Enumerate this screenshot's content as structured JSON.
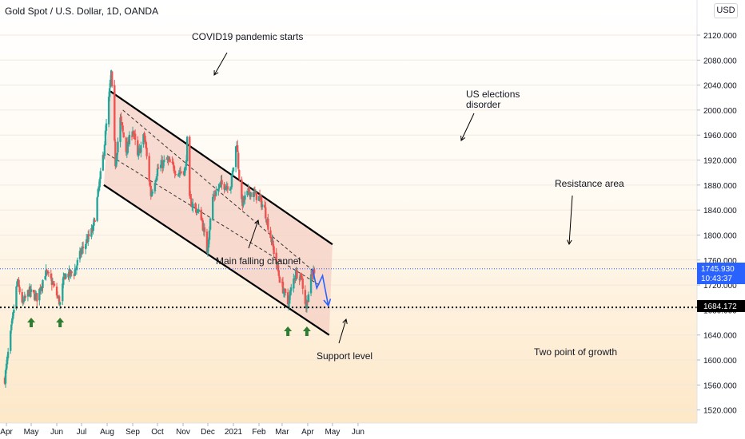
{
  "header": {
    "title": "Gold Spot / U.S. Dollar, 1D, OANDA",
    "currency_button": "USD"
  },
  "annotations": {
    "covid": "COVID19 pandemic starts",
    "elections": "US elections disorder",
    "resistance": "Resistance area",
    "channel": "Main falling channel",
    "support": "Support level",
    "growth": "Two point of growth"
  },
  "price_scale": {
    "labels": [
      "2120.000",
      "2080.000",
      "2040.000",
      "2000.000",
      "1960.000",
      "1920.000",
      "1880.000",
      "1840.000",
      "1800.000",
      "1760.000",
      "1720.000",
      "1680.000",
      "1640.000",
      "1600.000",
      "1560.000",
      "1520.000"
    ],
    "current_price": "1745.930",
    "countdown": "10:43:37",
    "support_price": "1684.172"
  },
  "time_axis": {
    "labels": [
      "Apr",
      "May",
      "Jun",
      "Jul",
      "Aug",
      "Sep",
      "Oct",
      "Nov",
      "Dec",
      "2021",
      "Feb",
      "Mar",
      "Apr",
      "May",
      "Jun"
    ]
  },
  "colors": {
    "up": "#26a69a",
    "down": "#ef5350",
    "arrow_up": "#2e7d32",
    "projection": "#2962ff",
    "channel_fill": "#f4cfc4",
    "price_tag": "#2962ff",
    "support_tag": "#000000"
  },
  "chart_data": {
    "type": "candlestick",
    "title": "Gold Spot / U.S. Dollar, 1D, OANDA",
    "ylim": [
      1500,
      2160
    ],
    "x_ticks": [
      "Apr",
      "May",
      "Jun",
      "Jul",
      "Aug",
      "Sep",
      "Oct",
      "Nov",
      "Dec",
      "2021",
      "Feb",
      "Mar",
      "Apr",
      "May",
      "Jun"
    ],
    "current_price": 1745.93,
    "support_level": 1684.172,
    "close_path": [
      [
        "2020-03-30",
        1570
      ],
      [
        "2020-04-08",
        1660
      ],
      [
        "2020-04-14",
        1725
      ],
      [
        "2020-04-21",
        1690
      ],
      [
        "2020-04-28",
        1710
      ],
      [
        "2020-05-08",
        1700
      ],
      [
        "2020-05-18",
        1740
      ],
      [
        "2020-05-26",
        1725
      ],
      [
        "2020-06-05",
        1690
      ],
      [
        "2020-06-10",
        1735
      ],
      [
        "2020-06-22",
        1740
      ],
      [
        "2020-07-01",
        1775
      ],
      [
        "2020-07-15",
        1810
      ],
      [
        "2020-07-24",
        1895
      ],
      [
        "2020-07-28",
        1935
      ],
      [
        "2020-08-04",
        2030
      ],
      [
        "2020-08-06",
        2060
      ],
      [
        "2020-08-11",
        1915
      ],
      [
        "2020-08-17",
        1985
      ],
      [
        "2020-08-24",
        1935
      ],
      [
        "2020-09-01",
        1970
      ],
      [
        "2020-09-07",
        1925
      ],
      [
        "2020-09-15",
        1960
      ],
      [
        "2020-09-23",
        1865
      ],
      [
        "2020-10-01",
        1905
      ],
      [
        "2020-10-12",
        1920
      ],
      [
        "2020-10-26",
        1900
      ],
      [
        "2020-11-04",
        1905
      ],
      [
        "2020-11-06",
        1950
      ],
      [
        "2020-11-09",
        1855
      ],
      [
        "2020-11-23",
        1830
      ],
      [
        "2020-11-30",
        1775
      ],
      [
        "2020-12-07",
        1860
      ],
      [
        "2020-12-16",
        1880
      ],
      [
        "2020-12-29",
        1880
      ],
      [
        "2021-01-05",
        1950
      ],
      [
        "2021-01-07",
        1910
      ],
      [
        "2021-01-11",
        1850
      ],
      [
        "2021-01-20",
        1870
      ],
      [
        "2021-02-01",
        1860
      ],
      [
        "2021-02-08",
        1840
      ],
      [
        "2021-02-18",
        1780
      ],
      [
        "2021-02-26",
        1730
      ],
      [
        "2021-03-08",
        1690
      ],
      [
        "2021-03-17",
        1740
      ],
      [
        "2021-03-24",
        1735
      ],
      [
        "2021-03-30",
        1685
      ],
      [
        "2021-04-05",
        1730
      ],
      [
        "2021-04-09",
        1745
      ]
    ],
    "channel": {
      "upper": [
        [
          "2020-08-05",
          2030
        ],
        [
          "2021-05-01",
          1785
        ]
      ],
      "lower": [
        [
          "2020-07-28",
          1880
        ],
        [
          "2021-04-27",
          1640
        ]
      ],
      "mid": [
        [
          "2020-08-01",
          1930
        ],
        [
          "2021-04-15",
          1720
        ]
      ],
      "inner": [
        [
          "2020-08-20",
          2000
        ],
        [
          "2021-04-10",
          1740
        ]
      ]
    },
    "projection": [
      [
        "2021-04-07",
        1745
      ],
      [
        "2021-04-12",
        1715
      ],
      [
        "2021-04-19",
        1735
      ],
      [
        "2021-04-26",
        1687
      ]
    ],
    "growth_points": [
      "2021-03-08",
      "2021-03-31"
    ],
    "support_touches": [
      "2020-05-01",
      "2020-06-05"
    ],
    "annotations": [
      {
        "text": "COVID19 pandemic starts",
        "date": "2020-08-07",
        "price": 2080
      },
      {
        "text": "US elections disorder",
        "date": "2021-01-12",
        "price": 1955
      },
      {
        "text": "Resistance area",
        "date": "2021-03-30",
        "price": 1800
      },
      {
        "text": "Main falling channel",
        "date": "2020-09-01",
        "price": 1810
      },
      {
        "text": "Support level",
        "date": "2020-11-01",
        "price": 1660
      },
      {
        "text": "Two point of growth",
        "date": "2021-03-22",
        "price": 1650
      }
    ]
  }
}
